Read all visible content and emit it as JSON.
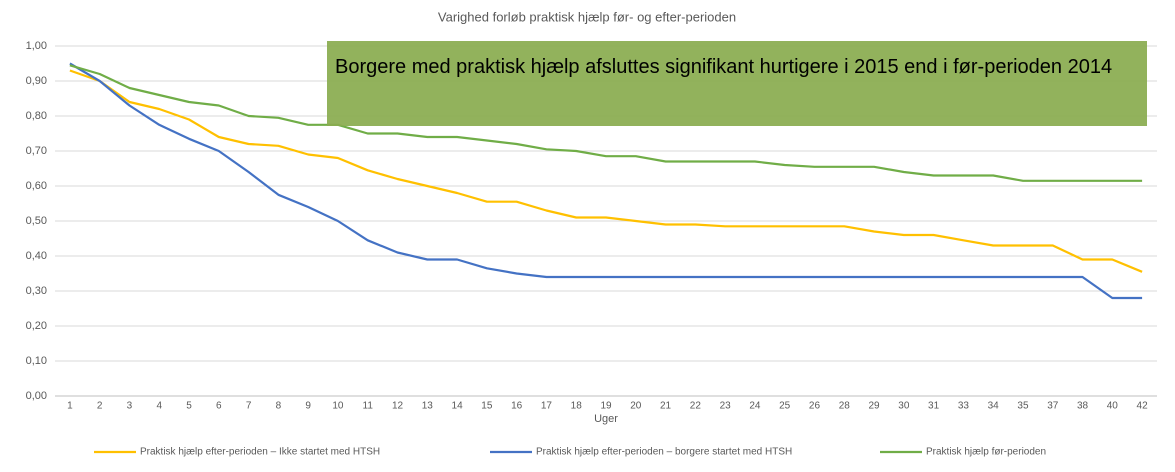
{
  "chart_data": {
    "type": "line",
    "title": "Varighed forløb praktisk hjælp før- og efter-perioden",
    "annotation": "Borgere med praktisk hjælp afsluttes signifikant hurtigere i 2015 end i før-perioden 2014",
    "x_label": "Uger",
    "categories": [
      "1",
      "2",
      "3",
      "4",
      "5",
      "6",
      "7",
      "8",
      "9",
      "10",
      "11",
      "12",
      "13",
      "14",
      "15",
      "16",
      "17",
      "18",
      "19",
      "20",
      "21",
      "22",
      "23",
      "24",
      "25",
      "26",
      "28",
      "29",
      "30",
      "31",
      "33",
      "34",
      "35",
      "37",
      "38",
      "40",
      "42"
    ],
    "series": [
      {
        "name": "Praktisk hjælp efter-perioden – Ikke startet med HTSH",
        "color": "#ffc000",
        "values": [
          0.93,
          0.9,
          0.84,
          0.82,
          0.79,
          0.74,
          0.72,
          0.715,
          0.69,
          0.68,
          0.645,
          0.62,
          0.6,
          0.58,
          0.555,
          0.555,
          0.53,
          0.51,
          0.51,
          0.5,
          0.49,
          0.49,
          0.485,
          0.485,
          0.485,
          0.485,
          0.485,
          0.47,
          0.46,
          0.46,
          0.445,
          0.43,
          0.43,
          0.43,
          0.39,
          0.39,
          0.355
        ]
      },
      {
        "name": "Praktisk hjælp efter-perioden – borgere startet med HTSH",
        "color": "#4472c4",
        "values": [
          0.95,
          0.9,
          0.83,
          0.775,
          0.735,
          0.7,
          0.64,
          0.575,
          0.54,
          0.5,
          0.445,
          0.41,
          0.39,
          0.39,
          0.365,
          0.35,
          0.34,
          0.34,
          0.34,
          0.34,
          0.34,
          0.34,
          0.34,
          0.34,
          0.34,
          0.34,
          0.34,
          0.34,
          0.34,
          0.34,
          0.34,
          0.34,
          0.34,
          0.34,
          0.34,
          0.28,
          0.28
        ]
      },
      {
        "name": "Praktisk hjælp før-perioden",
        "color": "#70ad47",
        "values": [
          0.945,
          0.92,
          0.88,
          0.86,
          0.84,
          0.83,
          0.8,
          0.795,
          0.775,
          0.775,
          0.75,
          0.75,
          0.74,
          0.74,
          0.73,
          0.72,
          0.705,
          0.7,
          0.685,
          0.685,
          0.67,
          0.67,
          0.67,
          0.67,
          0.66,
          0.655,
          0.655,
          0.655,
          0.64,
          0.63,
          0.63,
          0.63,
          0.615,
          0.615,
          0.615,
          0.615,
          0.615
        ]
      }
    ],
    "ylim": [
      0,
      1
    ],
    "yticks": [
      {
        "value": 0,
        "label": "0,00"
      },
      {
        "value": 0.1,
        "label": "0,10"
      },
      {
        "value": 0.2,
        "label": "0,20"
      },
      {
        "value": 0.3,
        "label": "0,30"
      },
      {
        "value": 0.4,
        "label": "0,40"
      },
      {
        "value": 0.5,
        "label": "0,50"
      },
      {
        "value": 0.6,
        "label": "0,60"
      },
      {
        "value": 0.7,
        "label": "0,70"
      },
      {
        "value": 0.8,
        "label": "0,80"
      },
      {
        "value": 0.9,
        "label": "0,90"
      },
      {
        "value": 1,
        "label": "1,00"
      }
    ],
    "grid": true,
    "legend": "bottom"
  }
}
